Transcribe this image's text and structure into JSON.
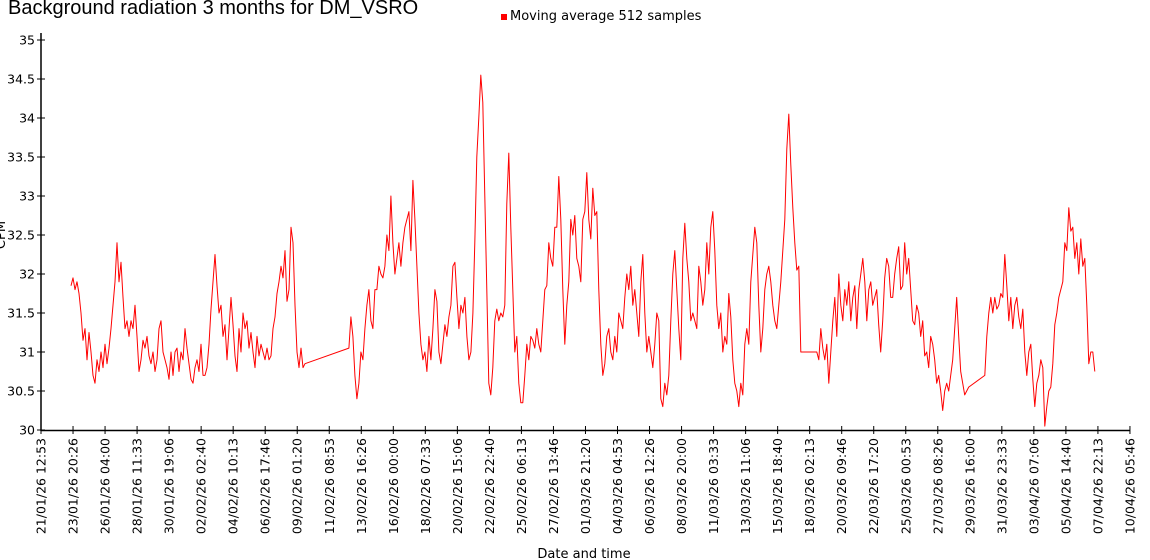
{
  "chart_data": {
    "type": "line",
    "title": "Background radiation 3 months for DM_VSRO",
    "xlabel": "Date and time",
    "ylabel": "CPM",
    "ylim": [
      30,
      35
    ],
    "yticks": [
      "30",
      "30.5",
      "31",
      "31.5",
      "32",
      "32.5",
      "33",
      "33.5",
      "34",
      "34.5",
      "35"
    ],
    "x_unit": "days since 21/01/26 12:53",
    "xlim_days": [
      0,
      78.7
    ],
    "xtick_step_days": 2.3146,
    "xticks": [
      "21/01/26 12:53",
      "23/01/26 20:26",
      "26/01/26 04:00",
      "28/01/26 11:33",
      "30/01/26 19:06",
      "02/02/26 02:40",
      "04/02/26 10:13",
      "06/02/26 17:46",
      "09/02/26 01:20",
      "11/02/26 08:53",
      "13/02/26 16:26",
      "16/02/26 00:00",
      "18/02/26 07:33",
      "20/02/26 15:06",
      "22/02/26 22:40",
      "25/02/26 06:13",
      "27/02/26 13:46",
      "01/03/26 21:20",
      "04/03/26 04:53",
      "06/03/26 12:26",
      "08/03/26 20:00",
      "11/03/26 03:33",
      "13/03/26 11:06",
      "15/03/26 18:40",
      "18/03/26 02:13",
      "20/03/26 09:46",
      "22/03/26 17:20",
      "25/03/26 00:53",
      "27/03/26 08:26",
      "29/03/26 16:00",
      "31/03/26 23:33",
      "03/04/26 07:06",
      "05/04/26 14:40",
      "07/04/26 22:13",
      "10/04/26 05:46"
    ],
    "grid": false,
    "legend_position": "top-center",
    "series": [
      {
        "name": "Moving average 512 samples",
        "color": "#ff0000",
        "segments": [
          {
            "start_day": 2.17,
            "step_days": 0.1445,
            "values": [
              31.85,
              31.95,
              31.8,
              31.9,
              31.75,
              31.5,
              31.15,
              31.3,
              30.9,
              31.25,
              31.0,
              30.7,
              30.6,
              30.9,
              30.75,
              31.0,
              30.8,
              31.1,
              30.85,
              31.05,
              31.3,
              31.6,
              31.9,
              32.4,
              31.9,
              32.15,
              31.7,
              31.3,
              31.4,
              31.2,
              31.4,
              31.3,
              31.6,
              31.2,
              30.75,
              30.9,
              31.15,
              31.05,
              31.2,
              30.95,
              30.85,
              31.0,
              30.75,
              30.9,
              31.3,
              31.4,
              31.0,
              30.9,
              30.8,
              30.65,
              31.0,
              30.7,
              31.0,
              31.05,
              30.75,
              31.0,
              30.9,
              31.3,
              31.05,
              30.85,
              30.65,
              30.6,
              30.8,
              30.9,
              30.75,
              31.1,
              30.7,
              30.7,
              30.8,
              31.1,
              31.55,
              31.9,
              32.25,
              31.85,
              31.5,
              31.6,
              31.2,
              31.35,
              30.9,
              31.3,
              31.7,
              31.35,
              30.95,
              30.75,
              31.3,
              31.0,
              31.5,
              31.3,
              31.4,
              31.05,
              31.25,
              31.0,
              30.8,
              31.2,
              30.95,
              31.1,
              31.0,
              30.9,
              31.05,
              30.9,
              30.95,
              31.3,
              31.45,
              31.75,
              31.9,
              32.1,
              31.95,
              32.3,
              31.65,
              31.8,
              32.6,
              32.4,
              31.6,
              31.0,
              30.8,
              31.05,
              30.8,
              30.85
            ]
          },
          {
            "start_day": 22.25,
            "step_days": 0.1445,
            "values": [
              31.05,
              31.45,
              31.2,
              30.7,
              30.4,
              30.6,
              31.0,
              30.9,
              31.3,
              31.6,
              31.8,
              31.4,
              31.3,
              31.8,
              31.8,
              32.1,
              32.0,
              31.95,
              32.1,
              32.5,
              32.3,
              33.0,
              32.4,
              32.0,
              32.2,
              32.4,
              32.1,
              32.4,
              32.6,
              32.7,
              32.8,
              32.3,
              33.2,
              32.7,
              32.1,
              31.5,
              31.1,
              30.9,
              31.0,
              30.75,
              31.2,
              30.9,
              31.3,
              31.8,
              31.65,
              31.0,
              30.85,
              31.1,
              31.35,
              31.2,
              31.45,
              31.6,
              32.1,
              32.15,
              31.7,
              31.3,
              31.6,
              31.5,
              31.7,
              31.2,
              30.9,
              31.0,
              31.5,
              32.4,
              33.5,
              34.0,
              34.55,
              34.2,
              33.0,
              31.8,
              30.6,
              30.45,
              30.8,
              31.4,
              31.55,
              31.4,
              31.5,
              31.45,
              31.6,
              32.9,
              33.55,
              32.6,
              31.8,
              31.0,
              31.2,
              30.6,
              30.35,
              30.35,
              30.7,
              31.1,
              30.9,
              31.2,
              31.15,
              31.05,
              31.3,
              31.1,
              31.0,
              31.4,
              31.8,
              31.85,
              32.4,
              32.2,
              32.1,
              32.6,
              32.6,
              33.25,
              32.7,
              31.8,
              31.1,
              31.6,
              31.9,
              32.7,
              32.5,
              32.75,
              32.2,
              32.1,
              31.9,
              32.7,
              32.8,
              33.3,
              32.7,
              32.45,
              33.1,
              32.75,
              32.8,
              31.8,
              31.1,
              30.7,
              30.85,
              31.2,
              31.3,
              31.0,
              30.9,
              31.2,
              31.0,
              31.5,
              31.4,
              31.3,
              31.7,
              32.0,
              31.8,
              32.1,
              31.6,
              31.8,
              31.5,
              31.2,
              31.9,
              32.25,
              31.5,
              31.0,
              31.2,
              31.0,
              30.8,
              31.1,
              31.5,
              31.4,
              30.4,
              30.3,
              30.6,
              30.45,
              30.7,
              31.4,
              32.0,
              32.3,
              31.8,
              31.3,
              30.9,
              32.2,
              32.65,
              32.2,
              31.9,
              31.4,
              31.5,
              31.4,
              31.3,
              32.1,
              31.9,
              31.6,
              31.8,
              32.4,
              32.0,
              32.6,
              32.8,
              32.3,
              31.6,
              31.3,
              31.5,
              31.0,
              31.2,
              31.1,
              31.75,
              31.45,
              30.9,
              30.6,
              30.5,
              30.3,
              30.6,
              30.45,
              31.1,
              31.3,
              31.1,
              31.9,
              32.25,
              32.6,
              32.4,
              31.6,
              31.0,
              31.3,
              31.8,
              32.0,
              32.1,
              31.9,
              31.6,
              31.4,
              31.3,
              31.6,
              31.9,
              32.3,
              32.7,
              33.6,
              34.05,
              33.4,
              32.85,
              32.4,
              32.05,
              32.1,
              31.0,
              31.0,
              31.0,
              31.0,
              31.0,
              31.0,
              31.0,
              31.0,
              31.0,
              30.9,
              31.3,
              31.05,
              30.9,
              31.1,
              30.6,
              31.0,
              31.4,
              31.7,
              31.2,
              32.0,
              31.6,
              31.4,
              31.8,
              31.6,
              31.9,
              31.4,
              31.7,
              31.85,
              31.3,
              31.8,
              32.0,
              32.2,
              31.9,
              31.4,
              31.8,
              31.9,
              31.6,
              31.7,
              31.8,
              31.35,
              31.0,
              31.4,
              31.95,
              32.2,
              32.1,
              31.7,
              31.7,
              32.0,
              32.2,
              32.35,
              31.8,
              31.85,
              32.4,
              32.0,
              32.2,
              31.8,
              31.4,
              31.35,
              31.6,
              31.5,
              31.2,
              31.4,
              30.95,
              31.0,
              30.8,
              31.2,
              31.1,
              30.9,
              30.6,
              30.7,
              30.5,
              30.25,
              30.5,
              30.6,
              30.5,
              30.7,
              30.9,
              31.3,
              31.7,
              31.2,
              30.75,
              30.6,
              30.45,
              30.5,
              30.55
            ]
          },
          {
            "start_day": 68.21,
            "step_days": 0.1445,
            "values": [
              30.7,
              31.2,
              31.5,
              31.7,
              31.5,
              31.7,
              31.55,
              31.6,
              31.75,
              31.7,
              32.25,
              31.85,
              31.4,
              31.7,
              31.3,
              31.6,
              31.7,
              31.45,
              31.3,
              31.55,
              31.0,
              30.7,
              31.0,
              31.1,
              30.65,
              30.3,
              30.6,
              30.7,
              30.9,
              30.8,
              30.05,
              30.3,
              30.5,
              30.55,
              30.85,
              31.35,
              31.5,
              31.7,
              31.8,
              31.9,
              32.4,
              32.3,
              32.85,
              32.55,
              32.6,
              32.2,
              32.4,
              32.0,
              32.45,
              32.1,
              32.2,
              31.6,
              30.85,
              31.0,
              31.0,
              30.75
            ]
          }
        ]
      }
    ]
  }
}
